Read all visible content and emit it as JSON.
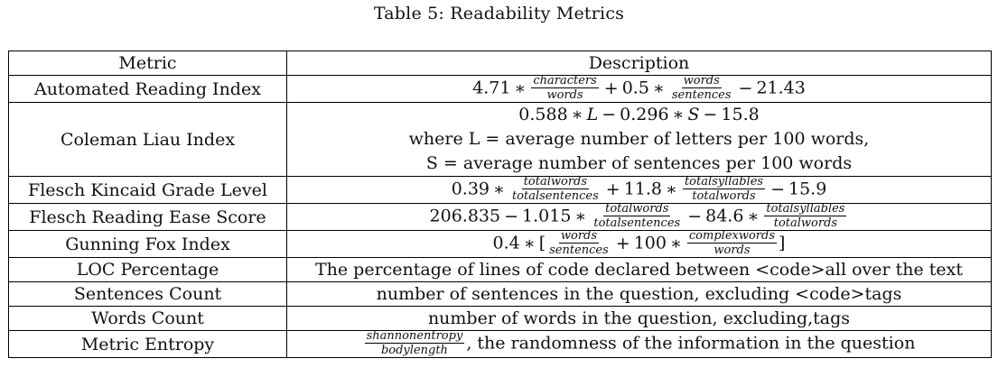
{
  "caption": "Table 5: Readability Metrics",
  "header": {
    "metric": "Metric",
    "description": "Description"
  },
  "rows": [
    {
      "metric": "Automated Reading Index",
      "formula": {
        "const1": "4.71",
        "frac1_num": "characters",
        "frac1_den": "words",
        "const2": "0.5",
        "frac2_num": "words",
        "frac2_den": "sentences",
        "const3": "21.43"
      }
    },
    {
      "metric": "Coleman Liau Index",
      "formula": {
        "const1": "0.588",
        "var1": "L",
        "const2": "0.296",
        "var2": "S",
        "const3": "15.8"
      },
      "line2": "where L = average number of letters per 100 words,",
      "line3": "S = average number of sentences per 100 words"
    },
    {
      "metric": "Flesch Kincaid Grade Level",
      "formula": {
        "const1": "0.39",
        "frac1_num": "totalwords",
        "frac1_den": "totalsentences",
        "const2": "11.8",
        "frac2_num": "totalsyllables",
        "frac2_den": "totalwords",
        "const3": "15.9"
      }
    },
    {
      "metric": "Flesch Reading Ease Score",
      "formula": {
        "const1": "206.835",
        "const2": "1.015",
        "frac1_num": "totalwords",
        "frac1_den": "totalsentences",
        "const3": "84.6",
        "frac2_num": "totalsyllables",
        "frac2_den": "totalwords"
      }
    },
    {
      "metric": "Gunning Fox Index",
      "formula": {
        "const1": "0.4",
        "frac1_num": "words",
        "frac1_den": "sentences",
        "const2": "100",
        "frac2_num": "complexwords",
        "frac2_den": "words"
      }
    },
    {
      "metric": "LOC Percentage",
      "description": "The percentage of lines of code declared between <code>all over the text"
    },
    {
      "metric": "Sentences Count",
      "description": "number of sentences in the question, excluding <code>tags"
    },
    {
      "metric": "Words Count",
      "description": "number of words in the question, excluding,tags"
    },
    {
      "metric": "Metric Entropy",
      "formula": {
        "frac1_num": "shannonentropy",
        "frac1_den": "bodylength"
      },
      "description": ", the randomness of the information in the question"
    }
  ],
  "symbols": {
    "times": "∗",
    "plus": "+",
    "minus": "−",
    "lbracket": "[",
    "rbracket": "]"
  }
}
